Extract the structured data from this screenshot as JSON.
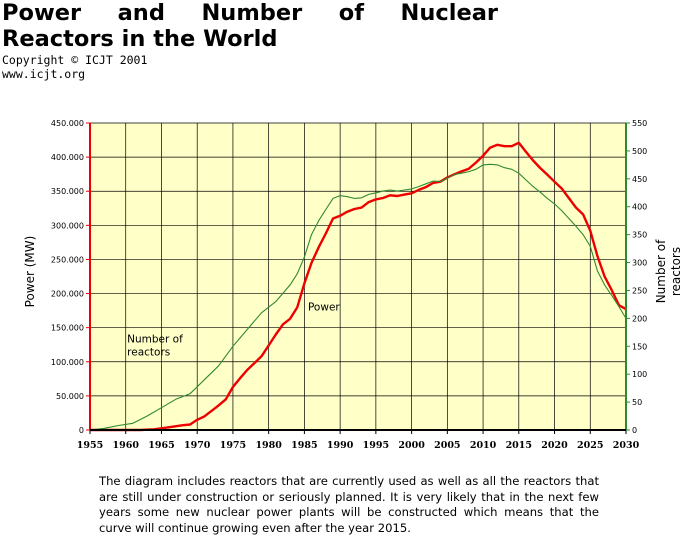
{
  "header": {
    "title_words_line1": [
      "Power",
      "and",
      "Number",
      "of",
      "Nuclear"
    ],
    "title_line2": "Reactors in the World",
    "copyright": "Copyright © ICJT 2001",
    "website": "www.icjt.org"
  },
  "colors": {
    "plot_background": "#ffffc8",
    "grid": "#000000",
    "power_series": "#ee0000",
    "reactors_series": "#2f8a2f",
    "left_axis": "#ee0000",
    "right_axis": "#2f8a2f"
  },
  "chart_data": {
    "type": "line",
    "title": "Power and Number of Nuclear Reactors in the World",
    "xlabel": "",
    "ylabel": "Power (MW)",
    "y2label_lines": [
      "Number of",
      "reactors"
    ],
    "xlim": [
      1955,
      2030
    ],
    "ylim": [
      0,
      450000
    ],
    "y2lim": [
      0,
      550
    ],
    "x_ticks": [
      1955,
      1960,
      1965,
      1970,
      1975,
      1980,
      1985,
      1990,
      1995,
      2000,
      2005,
      2010,
      2015,
      2020,
      2025,
      2030
    ],
    "x_tick_labels": [
      "1955",
      "1960",
      "1965",
      "1970",
      "1975",
      "1980",
      "1985",
      "1990",
      "1995",
      "2000",
      "2005",
      "2010",
      "2015",
      "2020",
      "2025",
      "2030"
    ],
    "y_ticks": [
      0,
      50000,
      100000,
      150000,
      200000,
      250000,
      300000,
      350000,
      400000,
      450000
    ],
    "y_tick_labels": [
      "0",
      "50.000",
      "100.000",
      "150.000",
      "200.000",
      "250.000",
      "300.000",
      "350.000",
      "400.000",
      "450.000"
    ],
    "y2_ticks": [
      0,
      50,
      100,
      150,
      200,
      250,
      300,
      350,
      400,
      450,
      500,
      550
    ],
    "y2_tick_labels": [
      "0",
      "50",
      "100",
      "150",
      "200",
      "250",
      "300",
      "350",
      "400",
      "450",
      "500",
      "550"
    ],
    "grid": true,
    "annotations": [
      {
        "text": "Power",
        "x": 1985.5,
        "y": 175000
      },
      {
        "text_lines": [
          "Number of",
          "reactors"
        ],
        "x": 1960.2,
        "y": 128000
      }
    ],
    "series": [
      {
        "name": "Power",
        "axis": "left",
        "x": [
          1955,
          1960,
          1962,
          1964,
          1966,
          1968,
          1969,
          1970,
          1971,
          1972,
          1973,
          1974,
          1975,
          1976,
          1977,
          1978,
          1979,
          1980,
          1981,
          1982,
          1983,
          1984,
          1985,
          1986,
          1987,
          1988,
          1989,
          1990,
          1991,
          1992,
          1993,
          1994,
          1995,
          1996,
          1997,
          1998,
          1999,
          2000,
          2001,
          2002,
          2003,
          2004,
          2005,
          2006,
          2007,
          2008,
          2009,
          2010,
          2011,
          2012,
          2013,
          2014,
          2015,
          2016,
          2017,
          2018,
          2019,
          2020,
          2021,
          2022,
          2023,
          2024,
          2025,
          2026,
          2027,
          2028,
          2029,
          2030
        ],
        "values": [
          0,
          0,
          0,
          1000,
          4000,
          7000,
          8000,
          15000,
          20000,
          28000,
          36000,
          45000,
          63000,
          76000,
          88000,
          98000,
          108000,
          124000,
          140000,
          155000,
          163000,
          180000,
          215000,
          245000,
          268000,
          288000,
          310000,
          314000,
          320000,
          324000,
          326000,
          334000,
          338000,
          340000,
          344000,
          343000,
          345000,
          347000,
          352000,
          356000,
          362000,
          364000,
          370000,
          375000,
          379000,
          383000,
          392000,
          402000,
          414000,
          418000,
          416000,
          416000,
          421000,
          408000,
          395000,
          384000,
          374000,
          364000,
          354000,
          340000,
          326000,
          316000,
          292000,
          255000,
          225000,
          205000,
          183000,
          177000
        ]
      },
      {
        "name": "Number of reactors",
        "axis": "right",
        "x": [
          1955,
          1957,
          1959,
          1961,
          1963,
          1965,
          1967,
          1969,
          1971,
          1973,
          1975,
          1977,
          1979,
          1981,
          1983,
          1984,
          1985,
          1986,
          1987,
          1988,
          1989,
          1990,
          1991,
          1992,
          1993,
          1994,
          1995,
          1996,
          1997,
          1998,
          1999,
          2000,
          2001,
          2002,
          2003,
          2004,
          2005,
          2006,
          2007,
          2008,
          2009,
          2010,
          2011,
          2012,
          2013,
          2014,
          2015,
          2016,
          2017,
          2018,
          2019,
          2020,
          2021,
          2022,
          2023,
          2024,
          2025,
          2026,
          2027,
          2028,
          2029,
          2030
        ],
        "values": [
          0,
          3,
          8,
          12,
          25,
          40,
          55,
          65,
          90,
          115,
          150,
          180,
          210,
          230,
          260,
          280,
          310,
          350,
          375,
          395,
          415,
          420,
          418,
          415,
          416,
          422,
          425,
          428,
          430,
          428,
          430,
          432,
          436,
          441,
          446,
          445,
          451,
          458,
          460,
          463,
          467,
          475,
          476,
          475,
          470,
          467,
          460,
          448,
          436,
          426,
          415,
          405,
          393,
          379,
          365,
          350,
          329,
          285,
          260,
          241,
          221,
          200
        ]
      }
    ]
  },
  "footer": {
    "note": "The diagram includes reactors that are currently used as well as all the reactors that are still under construction or seriously planned. It is very likely that in the next few years some new nuclear power plants will be constructed which means that the curve will continue growing even after the year 2015."
  }
}
